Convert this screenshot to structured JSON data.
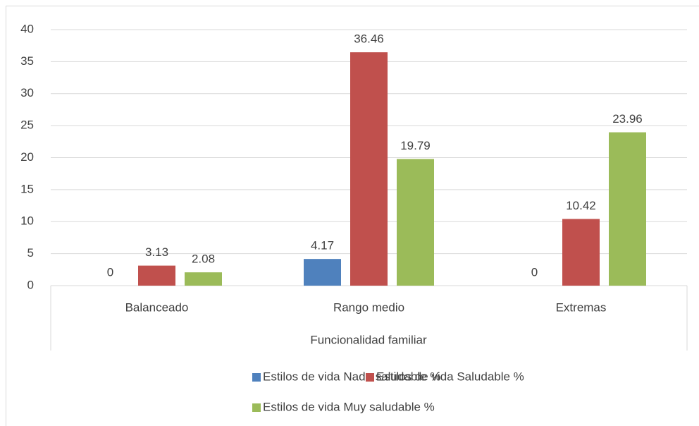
{
  "chart_data": {
    "type": "bar",
    "x_label": "Funcionalidad familiar",
    "categories": [
      "Balanceado",
      "Rango medio",
      "Extremas"
    ],
    "series": [
      {
        "name": "Estilos de vida Nada saludable %",
        "color": "#4f81bd",
        "values": [
          0,
          4.17,
          0
        ]
      },
      {
        "name": "Estilos de vida Saludable %",
        "color": "#c0504d",
        "values": [
          3.13,
          36.46,
          10.42
        ]
      },
      {
        "name": "Estilos de vida Muy saludable %",
        "color": "#9bbb59",
        "values": [
          2.08,
          19.79,
          23.96
        ]
      }
    ],
    "ylim": [
      0,
      40
    ],
    "yticks": [
      0,
      5,
      10,
      15,
      20,
      25,
      30,
      35,
      40
    ],
    "grid": true,
    "legend": "bottom"
  }
}
